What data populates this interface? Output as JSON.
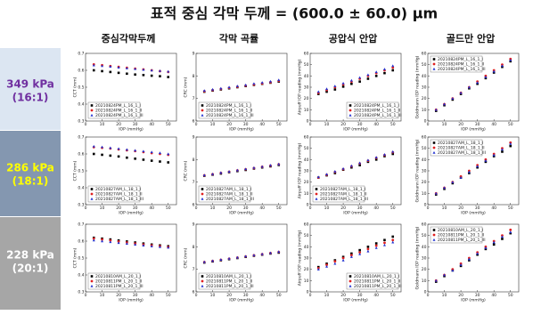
{
  "header": {
    "title": "표적 중심 각막 두께 = (600.0 ± 60.0) μm",
    "columns": [
      "중심각막두께",
      "각막 곡률",
      "공압식 안압",
      "골드만 안압"
    ]
  },
  "rows": [
    [
      "349 kPa",
      "(16:1)"
    ],
    [
      "286 kPa",
      "(18:1)"
    ],
    [
      "228 kPa",
      "(20:1)"
    ]
  ],
  "chart_data": [
    {
      "type": "scatter",
      "x_label": "IOP (mmHg)",
      "y_label": "CCT (mm)",
      "xlim": [
        0,
        55
      ],
      "xticks": [
        0,
        10,
        20,
        30,
        40,
        50
      ],
      "ylim": [
        0.3,
        0.7
      ],
      "yticks": [
        0.3,
        0.4,
        0.5,
        0.6,
        0.7
      ],
      "legend": "bottom-left",
      "x": [
        5,
        10,
        15,
        20,
        25,
        30,
        35,
        40,
        45,
        50
      ],
      "series": [
        {
          "name": "20210824PM_L_16_1_I",
          "color": "#000000",
          "values": [
            0.6,
            0.595,
            0.59,
            0.585,
            0.58,
            0.575,
            0.572,
            0.568,
            0.565,
            0.56
          ]
        },
        {
          "name": "20210824PM_L_16_1_II",
          "color": "#e02020",
          "values": [
            0.635,
            0.63,
            0.625,
            0.62,
            0.615,
            0.61,
            0.605,
            0.6,
            0.595,
            0.59
          ]
        },
        {
          "name": "20210824PM_L_16_1_III",
          "color": "#2030d0",
          "values": [
            0.63,
            0.626,
            0.622,
            0.617,
            0.612,
            0.608,
            0.604,
            0.6,
            0.597,
            0.593
          ]
        }
      ]
    },
    {
      "type": "scatter",
      "x_label": "IOP (mmHg)",
      "y_label": "CRC (mm)",
      "xlim": [
        0,
        55
      ],
      "xticks": [
        0,
        10,
        20,
        30,
        40,
        50
      ],
      "ylim": [
        6,
        9
      ],
      "yticks": [
        6,
        7,
        8,
        9
      ],
      "legend": "bottom-left",
      "x": [
        5,
        10,
        15,
        20,
        25,
        30,
        35,
        40,
        45,
        50
      ],
      "series": [
        {
          "name": "20210824PM_L_16_1_I",
          "color": "#000000",
          "values": [
            7.3,
            7.35,
            7.4,
            7.45,
            7.5,
            7.55,
            7.6,
            7.65,
            7.7,
            7.75
          ]
        },
        {
          "name": "20210824PM_L_16_1_II",
          "color": "#e02020",
          "values": [
            7.32,
            7.37,
            7.42,
            7.47,
            7.52,
            7.57,
            7.62,
            7.67,
            7.72,
            7.78
          ]
        },
        {
          "name": "20210824PM_L_16_1_III",
          "color": "#2030d0",
          "values": [
            7.35,
            7.4,
            7.45,
            7.5,
            7.55,
            7.6,
            7.66,
            7.71,
            7.76,
            7.82
          ]
        }
      ]
    },
    {
      "type": "scatter",
      "x_label": "IOP (mmHg)",
      "y_label": "Airpuff IOP reading (mmHg)",
      "xlim": [
        0,
        55
      ],
      "xticks": [
        0,
        10,
        20,
        30,
        40,
        50
      ],
      "ylim": [
        0,
        60
      ],
      "yticks": [
        0,
        10,
        20,
        30,
        40,
        50,
        60
      ],
      "legend": "bottom-right",
      "x": [
        5,
        10,
        15,
        20,
        25,
        30,
        35,
        40,
        45,
        50
      ],
      "series": [
        {
          "name": "20210824PM_L_16_1_I",
          "color": "#000000",
          "values": [
            24,
            26,
            28,
            30.5,
            33,
            35,
            37.5,
            40,
            42.5,
            45
          ]
        },
        {
          "name": "20210824PM_L_16_1_II",
          "color": "#e02020",
          "values": [
            25,
            27.5,
            30,
            32.5,
            35,
            37.5,
            40,
            42.5,
            45,
            47.5
          ]
        },
        {
          "name": "20210824PM_L_16_1_III",
          "color": "#2030d0",
          "values": [
            26,
            28.5,
            31,
            33.5,
            36,
            38.5,
            41,
            43.5,
            46,
            49
          ]
        }
      ]
    },
    {
      "type": "scatter",
      "x_label": "IOP (mmHg)",
      "y_label": "Goldmann IOP reading (mmHg)",
      "xlim": [
        0,
        55
      ],
      "xticks": [
        0,
        10,
        20,
        30,
        40,
        50
      ],
      "ylim": [
        0,
        60
      ],
      "yticks": [
        0,
        10,
        20,
        30,
        40,
        50,
        60
      ],
      "legend": "top-left",
      "x": [
        5,
        10,
        15,
        20,
        25,
        30,
        35,
        40,
        45,
        50
      ],
      "series": [
        {
          "name": "20210824PM_L_16_1_I",
          "color": "#000000",
          "values": [
            9,
            14,
            19,
            24,
            29,
            33,
            38,
            43,
            48,
            53
          ]
        },
        {
          "name": "20210824PM_L_16_1_II",
          "color": "#e02020",
          "values": [
            10,
            15,
            20,
            25,
            30,
            35,
            40,
            45,
            50,
            55
          ]
        },
        {
          "name": "20210824PM_L_16_1_III",
          "color": "#2030d0",
          "values": [
            10,
            15,
            20,
            25,
            30,
            34,
            39,
            44,
            49,
            54
          ]
        }
      ]
    },
    {
      "type": "scatter",
      "x_label": "IOP (mmHg)",
      "y_label": "CCT (mm)",
      "xlim": [
        0,
        55
      ],
      "xticks": [
        0,
        10,
        20,
        30,
        40,
        50
      ],
      "ylim": [
        0.3,
        0.7
      ],
      "yticks": [
        0.3,
        0.4,
        0.5,
        0.6,
        0.7
      ],
      "legend": "bottom-left",
      "x": [
        5,
        10,
        15,
        20,
        25,
        30,
        35,
        40,
        45,
        50
      ],
      "series": [
        {
          "name": "20210827AM_L_18_1_I",
          "color": "#000000",
          "values": [
            0.6,
            0.595,
            0.59,
            0.585,
            0.578,
            0.572,
            0.566,
            0.56,
            0.555,
            0.55
          ]
        },
        {
          "name": "20210827AM_L_18_1_II",
          "color": "#e02020",
          "values": [
            0.64,
            0.636,
            0.632,
            0.627,
            0.622,
            0.617,
            0.611,
            0.605,
            0.6,
            0.595
          ]
        },
        {
          "name": "20210827AM_L_18_1_III",
          "color": "#2030d0",
          "values": [
            0.645,
            0.641,
            0.636,
            0.631,
            0.626,
            0.621,
            0.616,
            0.611,
            0.606,
            0.6
          ]
        }
      ]
    },
    {
      "type": "scatter",
      "x_label": "IOP (mmHg)",
      "y_label": "CRC (mm)",
      "xlim": [
        0,
        55
      ],
      "xticks": [
        0,
        10,
        20,
        30,
        40,
        50
      ],
      "ylim": [
        6,
        9
      ],
      "yticks": [
        6,
        7,
        8,
        9
      ],
      "legend": "bottom-left",
      "x": [
        5,
        10,
        15,
        20,
        25,
        30,
        35,
        40,
        45,
        50
      ],
      "series": [
        {
          "name": "20210827AM_L_18_1_I",
          "color": "#000000",
          "values": [
            7.28,
            7.33,
            7.38,
            7.44,
            7.49,
            7.54,
            7.6,
            7.65,
            7.7,
            7.76
          ]
        },
        {
          "name": "20210827AM_L_18_1_II",
          "color": "#e02020",
          "values": [
            7.3,
            7.35,
            7.41,
            7.46,
            7.52,
            7.57,
            7.62,
            7.68,
            7.73,
            7.79
          ]
        },
        {
          "name": "20210827AM_L_18_1_III",
          "color": "#2030d0",
          "values": [
            7.31,
            7.36,
            7.42,
            7.47,
            7.53,
            7.58,
            7.64,
            7.69,
            7.75,
            7.8
          ]
        }
      ]
    },
    {
      "type": "scatter",
      "x_label": "IOP (mmHg)",
      "y_label": "Airpuff IOP reading (mmHg)",
      "xlim": [
        0,
        55
      ],
      "xticks": [
        0,
        10,
        20,
        30,
        40,
        50
      ],
      "ylim": [
        0,
        60
      ],
      "yticks": [
        0,
        10,
        20,
        30,
        40,
        50,
        60
      ],
      "legend": "bottom-left",
      "x": [
        5,
        10,
        15,
        20,
        25,
        30,
        35,
        40,
        45,
        50
      ],
      "series": [
        {
          "name": "20210827AM_L_18_1_I",
          "color": "#000000",
          "values": [
            24,
            26,
            28,
            31,
            33,
            35,
            38,
            40,
            43,
            45
          ]
        },
        {
          "name": "20210827AM_L_18_1_II",
          "color": "#e02020",
          "values": [
            24,
            26.5,
            29,
            31.5,
            34,
            36.5,
            39,
            41.5,
            44,
            46.5
          ]
        },
        {
          "name": "20210827AM_L_18_1_III",
          "color": "#2030d0",
          "values": [
            24.5,
            27,
            29.5,
            32,
            34.5,
            37,
            39.5,
            42,
            44.5,
            47
          ]
        }
      ]
    },
    {
      "type": "scatter",
      "x_label": "IOP (mmHg)",
      "y_label": "Goldmann IOP reading (mmHg)",
      "xlim": [
        0,
        55
      ],
      "xticks": [
        0,
        10,
        20,
        30,
        40,
        50
      ],
      "ylim": [
        0,
        60
      ],
      "yticks": [
        0,
        10,
        20,
        30,
        40,
        50,
        60
      ],
      "legend": "top-left",
      "x": [
        5,
        10,
        15,
        20,
        25,
        30,
        35,
        40,
        45,
        50
      ],
      "series": [
        {
          "name": "20210827AM_L_18_1_I",
          "color": "#000000",
          "values": [
            9,
            14,
            19,
            24,
            28,
            33,
            38,
            43,
            47,
            52
          ]
        },
        {
          "name": "20210827AM_L_18_1_II",
          "color": "#e02020",
          "values": [
            10,
            15,
            20,
            25,
            30,
            35,
            40,
            45,
            50,
            55
          ]
        },
        {
          "name": "20210827AM_L_18_1_III",
          "color": "#2030d0",
          "values": [
            10,
            15,
            20,
            24,
            29,
            34,
            39,
            44,
            49,
            54
          ]
        }
      ]
    },
    {
      "type": "scatter",
      "x_label": "IOP (mmHg)",
      "y_label": "CCT (mm)",
      "xlim": [
        0,
        55
      ],
      "xticks": [
        0,
        10,
        20,
        30,
        40,
        50
      ],
      "ylim": [
        0.3,
        0.7
      ],
      "yticks": [
        0.3,
        0.4,
        0.5,
        0.6,
        0.7
      ],
      "legend": "bottom-left",
      "x": [
        5,
        10,
        15,
        20,
        25,
        30,
        35,
        40,
        45,
        50
      ],
      "series": [
        {
          "name": "20210810AM_L_20_1_I",
          "color": "#000000",
          "values": [
            0.62,
            0.615,
            0.61,
            0.604,
            0.598,
            0.592,
            0.586,
            0.58,
            0.575,
            0.57
          ]
        },
        {
          "name": "20210811PM_L_20_1_II",
          "color": "#e02020",
          "values": [
            0.615,
            0.61,
            0.604,
            0.598,
            0.592,
            0.586,
            0.58,
            0.575,
            0.57,
            0.565
          ]
        },
        {
          "name": "20210811PM_L_20_1_III",
          "color": "#2030d0",
          "values": [
            0.605,
            0.6,
            0.595,
            0.59,
            0.585,
            0.58,
            0.575,
            0.57,
            0.566,
            0.562
          ]
        }
      ]
    },
    {
      "type": "scatter",
      "x_label": "IOP (mmHg)",
      "y_label": "CRC (mm)",
      "xlim": [
        0,
        55
      ],
      "xticks": [
        0,
        10,
        20,
        30,
        40,
        50
      ],
      "ylim": [
        6,
        9
      ],
      "yticks": [
        6,
        7,
        8,
        9
      ],
      "legend": "bottom-left",
      "x": [
        5,
        10,
        15,
        20,
        25,
        30,
        35,
        40,
        45,
        50
      ],
      "series": [
        {
          "name": "20210810AM_L_20_1_I",
          "color": "#000000",
          "values": [
            7.3,
            7.35,
            7.4,
            7.45,
            7.5,
            7.55,
            7.6,
            7.65,
            7.7,
            7.74
          ]
        },
        {
          "name": "20210811PM_L_20_1_II",
          "color": "#e02020",
          "values": [
            7.32,
            7.37,
            7.42,
            7.47,
            7.52,
            7.57,
            7.62,
            7.67,
            7.72,
            7.77
          ]
        },
        {
          "name": "20210811PM_L_20_1_III",
          "color": "#2030d0",
          "values": [
            7.33,
            7.38,
            7.43,
            7.48,
            7.53,
            7.58,
            7.63,
            7.68,
            7.73,
            7.78
          ]
        }
      ]
    },
    {
      "type": "scatter",
      "x_label": "IOP (mmHg)",
      "y_label": "Airpuff IOP reading (mmHg)",
      "xlim": [
        0,
        55
      ],
      "xticks": [
        0,
        10,
        20,
        30,
        40,
        50
      ],
      "ylim": [
        0,
        60
      ],
      "yticks": [
        0,
        10,
        20,
        30,
        40,
        50,
        60
      ],
      "legend": "bottom-right",
      "x": [
        5,
        10,
        15,
        20,
        25,
        30,
        35,
        40,
        45,
        50
      ],
      "series": [
        {
          "name": "20210810AM_L_20_1_I",
          "color": "#000000",
          "values": [
            22,
            25,
            28,
            31,
            34,
            37,
            40,
            43,
            46,
            49
          ]
        },
        {
          "name": "20210811PM_L_20_1_II",
          "color": "#e02020",
          "values": [
            21,
            24,
            27,
            30,
            32.5,
            35,
            38,
            41,
            43.5,
            46
          ]
        },
        {
          "name": "20210811PM_L_20_1_III",
          "color": "#2030d0",
          "values": [
            20,
            22.5,
            25,
            28,
            31,
            33.5,
            36,
            39,
            41.5,
            44
          ]
        }
      ]
    },
    {
      "type": "scatter",
      "x_label": "IOP (mmHg)",
      "y_label": "Goldmann IOP reading (mmHg)",
      "xlim": [
        0,
        55
      ],
      "xticks": [
        0,
        10,
        20,
        30,
        40,
        50
      ],
      "ylim": [
        0,
        60
      ],
      "yticks": [
        0,
        10,
        20,
        30,
        40,
        50,
        60
      ],
      "legend": "top-left",
      "x": [
        5,
        10,
        15,
        20,
        25,
        30,
        35,
        40,
        45,
        50
      ],
      "series": [
        {
          "name": "20210810AM_L_20_1_I",
          "color": "#000000",
          "values": [
            9,
            14,
            19,
            23,
            28,
            33,
            38,
            42,
            47,
            52
          ]
        },
        {
          "name": "20210811PM_L_20_1_II",
          "color": "#e02020",
          "values": [
            10,
            15,
            20,
            25,
            30,
            35,
            40,
            45,
            50,
            55
          ]
        },
        {
          "name": "20210811PM_L_20_1_III",
          "color": "#2030d0",
          "values": [
            10,
            15,
            19,
            24,
            29,
            34,
            39,
            44,
            49,
            53
          ]
        }
      ]
    }
  ]
}
